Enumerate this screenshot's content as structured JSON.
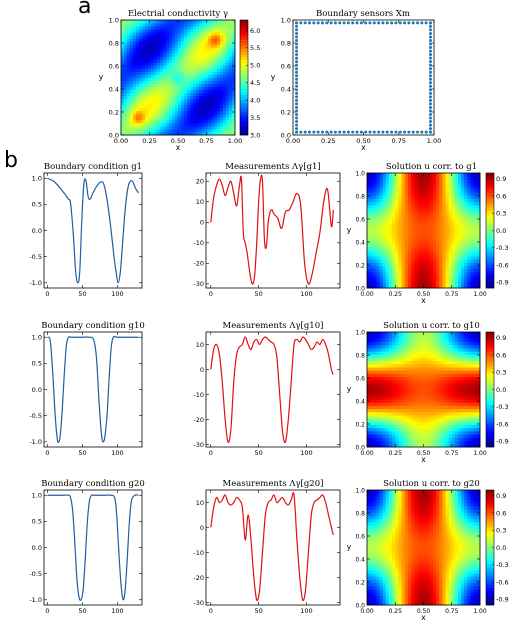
{
  "figure": {
    "panel_a_letter": "a",
    "panel_b_letter": "b"
  },
  "chart_data": [
    {
      "id": "conductivity",
      "type": "heatmap",
      "title": "Electrial conductivity γ",
      "xlabel": "x",
      "ylabel": "y",
      "xlim": [
        0,
        1
      ],
      "ylim": [
        0,
        1
      ],
      "xticks": [
        "0.00",
        "0.25",
        "0.50",
        "0.75",
        "1.00"
      ],
      "yticks": [
        "0.0",
        "0.2",
        "0.4",
        "0.6",
        "0.8",
        "1.0"
      ],
      "colorbar_ticks": [
        "3.0",
        "3.5",
        "4.0",
        "4.5",
        "5.0",
        "5.5",
        "6.0"
      ],
      "colorbar_range": [
        3.0,
        6.3
      ],
      "colormap": "jet",
      "peaks": [
        [
          0.83,
          0.83,
          6.2
        ],
        [
          0.15,
          0.15,
          6.1
        ],
        [
          0.5,
          0.5,
          4.6
        ]
      ]
    },
    {
      "id": "sensors",
      "type": "scatter",
      "title": "Boundary sensors Xm",
      "xlabel": "x",
      "ylabel": "y",
      "xlim": [
        0,
        1
      ],
      "ylim": [
        0,
        1
      ],
      "xticks": [
        "0.00",
        "0.25",
        "0.50",
        "0.75",
        "1.00"
      ],
      "yticks": [
        "0.0",
        "0.2",
        "0.4",
        "0.6",
        "0.8",
        "1.0"
      ],
      "points_per_side": 32,
      "color": "#1f77b4"
    },
    {
      "id": "bc_g1",
      "type": "line",
      "title": "Boundary condition g1",
      "xticks": [
        "0",
        "50",
        "100"
      ],
      "yticks": [
        "-1.0",
        "-0.5",
        "0.0",
        "0.5",
        "1.0"
      ],
      "xlim": [
        -5,
        135
      ],
      "ylim": [
        -1.1,
        1.1
      ],
      "color": "#1f5fa0",
      "x": [
        0,
        10,
        20,
        30,
        33,
        37,
        40,
        43,
        46,
        49,
        52,
        55,
        58,
        61,
        65,
        70,
        75,
        80,
        85,
        90,
        95,
        98,
        101,
        104,
        107,
        110,
        113,
        116,
        119,
        122,
        126,
        130
      ],
      "y": [
        1.0,
        0.93,
        0.78,
        0.6,
        0.52,
        -0.1,
        -0.75,
        -1.0,
        -0.8,
        0.2,
        0.9,
        0.95,
        0.65,
        0.6,
        0.72,
        0.84,
        0.92,
        0.9,
        0.6,
        0.1,
        -0.5,
        -0.8,
        -1.0,
        -0.8,
        -0.3,
        0.25,
        0.65,
        0.88,
        0.95,
        0.93,
        0.8,
        0.72
      ]
    },
    {
      "id": "meas_g1",
      "type": "line",
      "title": "Measurements Λγ[g1]",
      "xticks": [
        "0",
        "50",
        "100"
      ],
      "yticks": [
        "-30",
        "-20",
        "-10",
        "0",
        "10",
        "20"
      ],
      "xlim": [
        -5,
        135
      ],
      "ylim": [
        -32,
        24
      ],
      "color": "#e01010",
      "x": [
        0,
        3,
        6,
        9,
        12,
        15,
        18,
        21,
        24,
        27,
        30,
        32,
        34,
        36,
        38,
        40,
        42,
        44,
        46,
        48,
        50,
        52,
        54,
        56,
        58,
        60,
        62,
        64,
        66,
        70,
        74,
        78,
        82,
        86,
        90,
        94,
        98,
        102,
        106,
        110,
        114,
        118,
        122,
        126,
        128
      ],
      "y": [
        0,
        12,
        18,
        21,
        18,
        13,
        17,
        20,
        14,
        8,
        18,
        21,
        -5,
        -10,
        -15,
        -22,
        -28,
        -30,
        -25,
        -10,
        10,
        21,
        20,
        -8,
        -12,
        0,
        5,
        6,
        4,
        2,
        -3,
        5,
        6,
        10,
        14,
        8,
        -20,
        -30,
        -25,
        -15,
        -5,
        10,
        16,
        -2,
        6
      ]
    },
    {
      "id": "sol_g1",
      "type": "heatmap",
      "title": "Solution u corr. to g1",
      "mode": "horizontal",
      "xlabel": "x",
      "ylabel": "y",
      "xticks": [
        "0.00",
        "0.25",
        "0.50",
        "0.75",
        "1.00"
      ],
      "yticks": [
        "0.0",
        "0.2",
        "0.4",
        "0.6",
        "0.8",
        "1.0"
      ],
      "colorbar_ticks": [
        "0.9",
        "0.6",
        "0.3",
        "0.0",
        "-0.3",
        "-0.6",
        "-0.9"
      ]
    },
    {
      "id": "bc_g10",
      "type": "line",
      "title": "Boundary condition g10",
      "xticks": [
        "0",
        "50",
        "100"
      ],
      "yticks": [
        "-1.0",
        "-0.5",
        "0.0",
        "0.5",
        "1.0"
      ],
      "xlim": [
        -5,
        135
      ],
      "ylim": [
        -1.1,
        1.1
      ],
      "color": "#1f5fa0",
      "x": [
        0,
        3,
        5,
        8,
        11,
        14,
        16,
        18,
        21,
        24,
        27,
        30,
        34,
        40,
        50,
        60,
        66,
        70,
        73,
        76,
        78,
        80,
        82,
        85,
        88,
        91,
        94,
        100,
        110,
        120,
        130
      ],
      "y": [
        1.0,
        0.98,
        0.8,
        0.2,
        -0.5,
        -0.95,
        -1.0,
        -0.9,
        -0.4,
        0.3,
        0.85,
        1.0,
        1.0,
        1.0,
        1.0,
        1.0,
        0.95,
        0.6,
        -0.1,
        -0.7,
        -0.95,
        -1.0,
        -0.9,
        -0.5,
        0.2,
        0.8,
        1.0,
        1.0,
        1.0,
        1.0,
        1.0
      ]
    },
    {
      "id": "meas_g10",
      "type": "line",
      "title": "Measurements Λγ[g10]",
      "xticks": [
        "0",
        "50",
        "100"
      ],
      "yticks": [
        "-30",
        "-20",
        "-10",
        "0",
        "10"
      ],
      "xlim": [
        -5,
        135
      ],
      "ylim": [
        -31,
        15
      ],
      "color": "#e01010",
      "x": [
        0,
        3,
        6,
        9,
        12,
        15,
        18,
        21,
        24,
        27,
        30,
        33,
        36,
        39,
        42,
        45,
        48,
        51,
        54,
        57,
        60,
        63,
        66,
        69,
        72,
        75,
        78,
        81,
        84,
        87,
        90,
        93,
        96,
        99,
        102,
        105,
        108,
        111,
        114,
        117,
        120,
        123,
        126,
        128
      ],
      "y": [
        0,
        8,
        10,
        6,
        -5,
        -20,
        -29,
        -24,
        -5,
        6,
        9,
        10,
        13,
        10,
        8,
        11,
        12,
        10,
        12,
        13,
        12,
        11,
        10,
        5,
        -10,
        -25,
        -29,
        -20,
        -5,
        10,
        12,
        11,
        13,
        12,
        10,
        8,
        9,
        11,
        10,
        12,
        10,
        6,
        0,
        -2
      ]
    },
    {
      "id": "sol_g10",
      "type": "heatmap",
      "title": "Solution u corr. to g10",
      "mode": "vertical",
      "xlabel": "x",
      "ylabel": "y",
      "xticks": [
        "0.00",
        "0.25",
        "0.50",
        "0.75",
        "1.00"
      ],
      "yticks": [
        "0.0",
        "0.2",
        "0.4",
        "0.6",
        "0.8",
        "1.0"
      ],
      "colorbar_ticks": [
        "0.9",
        "0.6",
        "0.3",
        "0.0",
        "-0.3",
        "-0.6",
        "-0.9"
      ]
    },
    {
      "id": "bc_g20",
      "type": "line",
      "title": "Boundary condition g20",
      "xticks": [
        "0",
        "50",
        "100"
      ],
      "yticks": [
        "-1.0",
        "-0.5",
        "0.0",
        "0.5",
        "1.0"
      ],
      "xlim": [
        -5,
        135
      ],
      "ylim": [
        -1.1,
        1.1
      ],
      "color": "#1f5fa0",
      "x": [
        0,
        10,
        20,
        30,
        33,
        36,
        39,
        42,
        45,
        48,
        51,
        54,
        57,
        60,
        63,
        66,
        70,
        80,
        90,
        96,
        99,
        102,
        105,
        108,
        111,
        114,
        117,
        120,
        125,
        130
      ],
      "y": [
        1.0,
        1.0,
        1.0,
        1.0,
        0.95,
        0.7,
        0.1,
        -0.6,
        -0.95,
        -1.0,
        -0.8,
        -0.2,
        0.5,
        0.9,
        1.0,
        1.0,
        1.0,
        1.0,
        1.0,
        0.95,
        0.6,
        -0.1,
        -0.7,
        -1.0,
        -0.8,
        -0.2,
        0.5,
        0.9,
        1.0,
        1.0
      ]
    },
    {
      "id": "meas_g20",
      "type": "line",
      "title": "Measurements Λγ[g20]",
      "xticks": [
        "0",
        "50",
        "100"
      ],
      "yticks": [
        "-30",
        "-20",
        "-10",
        "0",
        "10"
      ],
      "xlim": [
        -5,
        135
      ],
      "ylim": [
        -31,
        15
      ],
      "color": "#e01010",
      "x": [
        0,
        3,
        6,
        9,
        12,
        15,
        18,
        21,
        24,
        27,
        30,
        33,
        36,
        39,
        42,
        45,
        48,
        51,
        54,
        57,
        60,
        63,
        66,
        69,
        72,
        75,
        78,
        81,
        84,
        87,
        90,
        93,
        96,
        99,
        102,
        105,
        108,
        111,
        114,
        117,
        120,
        123,
        126,
        128
      ],
      "y": [
        0,
        8,
        12,
        10,
        11,
        13,
        10,
        9,
        10,
        12,
        11,
        8,
        -5,
        5,
        -5,
        -20,
        -29,
        -25,
        -10,
        5,
        10,
        11,
        13,
        10,
        11,
        12,
        10,
        9,
        11,
        13,
        -5,
        -20,
        -29,
        -25,
        -10,
        5,
        10,
        11,
        12,
        13,
        10,
        5,
        0,
        -3
      ]
    },
    {
      "id": "sol_g20",
      "type": "heatmap",
      "title": "Solution u corr. to g20",
      "mode": "horizontal",
      "xlabel": "x",
      "ylabel": "y",
      "xticks": [
        "0.00",
        "0.25",
        "0.50",
        "0.75",
        "1.00"
      ],
      "yticks": [
        "0.0",
        "0.2",
        "0.4",
        "0.6",
        "0.8",
        "1.0"
      ],
      "colorbar_ticks": [
        "0.9",
        "0.6",
        "0.3",
        "0.0",
        "-0.3",
        "-0.6",
        "-0.9"
      ]
    }
  ]
}
